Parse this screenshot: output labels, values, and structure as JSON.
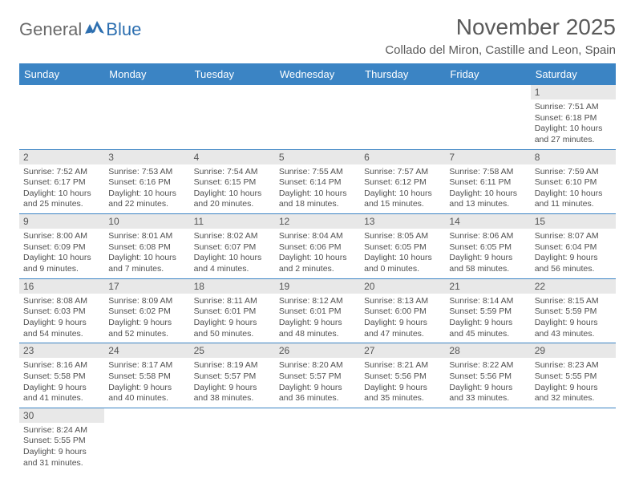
{
  "logo": {
    "part1": "General",
    "part2": "Blue"
  },
  "title": "November 2025",
  "location": "Collado del Miron, Castille and Leon, Spain",
  "colors": {
    "header_bg": "#3b84c4",
    "header_text": "#ffffff",
    "daynum_bg": "#e8e8e8",
    "row_border": "#3b84c4",
    "logo_gray": "#6a6a6a",
    "logo_blue": "#2d6fb0"
  },
  "dayNames": [
    "Sunday",
    "Monday",
    "Tuesday",
    "Wednesday",
    "Thursday",
    "Friday",
    "Saturday"
  ],
  "weeks": [
    [
      null,
      null,
      null,
      null,
      null,
      null,
      {
        "n": "1",
        "sr": "Sunrise: 7:51 AM",
        "ss": "Sunset: 6:18 PM",
        "d1": "Daylight: 10 hours",
        "d2": "and 27 minutes."
      }
    ],
    [
      {
        "n": "2",
        "sr": "Sunrise: 7:52 AM",
        "ss": "Sunset: 6:17 PM",
        "d1": "Daylight: 10 hours",
        "d2": "and 25 minutes."
      },
      {
        "n": "3",
        "sr": "Sunrise: 7:53 AM",
        "ss": "Sunset: 6:16 PM",
        "d1": "Daylight: 10 hours",
        "d2": "and 22 minutes."
      },
      {
        "n": "4",
        "sr": "Sunrise: 7:54 AM",
        "ss": "Sunset: 6:15 PM",
        "d1": "Daylight: 10 hours",
        "d2": "and 20 minutes."
      },
      {
        "n": "5",
        "sr": "Sunrise: 7:55 AM",
        "ss": "Sunset: 6:14 PM",
        "d1": "Daylight: 10 hours",
        "d2": "and 18 minutes."
      },
      {
        "n": "6",
        "sr": "Sunrise: 7:57 AM",
        "ss": "Sunset: 6:12 PM",
        "d1": "Daylight: 10 hours",
        "d2": "and 15 minutes."
      },
      {
        "n": "7",
        "sr": "Sunrise: 7:58 AM",
        "ss": "Sunset: 6:11 PM",
        "d1": "Daylight: 10 hours",
        "d2": "and 13 minutes."
      },
      {
        "n": "8",
        "sr": "Sunrise: 7:59 AM",
        "ss": "Sunset: 6:10 PM",
        "d1": "Daylight: 10 hours",
        "d2": "and 11 minutes."
      }
    ],
    [
      {
        "n": "9",
        "sr": "Sunrise: 8:00 AM",
        "ss": "Sunset: 6:09 PM",
        "d1": "Daylight: 10 hours",
        "d2": "and 9 minutes."
      },
      {
        "n": "10",
        "sr": "Sunrise: 8:01 AM",
        "ss": "Sunset: 6:08 PM",
        "d1": "Daylight: 10 hours",
        "d2": "and 7 minutes."
      },
      {
        "n": "11",
        "sr": "Sunrise: 8:02 AM",
        "ss": "Sunset: 6:07 PM",
        "d1": "Daylight: 10 hours",
        "d2": "and 4 minutes."
      },
      {
        "n": "12",
        "sr": "Sunrise: 8:04 AM",
        "ss": "Sunset: 6:06 PM",
        "d1": "Daylight: 10 hours",
        "d2": "and 2 minutes."
      },
      {
        "n": "13",
        "sr": "Sunrise: 8:05 AM",
        "ss": "Sunset: 6:05 PM",
        "d1": "Daylight: 10 hours",
        "d2": "and 0 minutes."
      },
      {
        "n": "14",
        "sr": "Sunrise: 8:06 AM",
        "ss": "Sunset: 6:05 PM",
        "d1": "Daylight: 9 hours",
        "d2": "and 58 minutes."
      },
      {
        "n": "15",
        "sr": "Sunrise: 8:07 AM",
        "ss": "Sunset: 6:04 PM",
        "d1": "Daylight: 9 hours",
        "d2": "and 56 minutes."
      }
    ],
    [
      {
        "n": "16",
        "sr": "Sunrise: 8:08 AM",
        "ss": "Sunset: 6:03 PM",
        "d1": "Daylight: 9 hours",
        "d2": "and 54 minutes."
      },
      {
        "n": "17",
        "sr": "Sunrise: 8:09 AM",
        "ss": "Sunset: 6:02 PM",
        "d1": "Daylight: 9 hours",
        "d2": "and 52 minutes."
      },
      {
        "n": "18",
        "sr": "Sunrise: 8:11 AM",
        "ss": "Sunset: 6:01 PM",
        "d1": "Daylight: 9 hours",
        "d2": "and 50 minutes."
      },
      {
        "n": "19",
        "sr": "Sunrise: 8:12 AM",
        "ss": "Sunset: 6:01 PM",
        "d1": "Daylight: 9 hours",
        "d2": "and 48 minutes."
      },
      {
        "n": "20",
        "sr": "Sunrise: 8:13 AM",
        "ss": "Sunset: 6:00 PM",
        "d1": "Daylight: 9 hours",
        "d2": "and 47 minutes."
      },
      {
        "n": "21",
        "sr": "Sunrise: 8:14 AM",
        "ss": "Sunset: 5:59 PM",
        "d1": "Daylight: 9 hours",
        "d2": "and 45 minutes."
      },
      {
        "n": "22",
        "sr": "Sunrise: 8:15 AM",
        "ss": "Sunset: 5:59 PM",
        "d1": "Daylight: 9 hours",
        "d2": "and 43 minutes."
      }
    ],
    [
      {
        "n": "23",
        "sr": "Sunrise: 8:16 AM",
        "ss": "Sunset: 5:58 PM",
        "d1": "Daylight: 9 hours",
        "d2": "and 41 minutes."
      },
      {
        "n": "24",
        "sr": "Sunrise: 8:17 AM",
        "ss": "Sunset: 5:58 PM",
        "d1": "Daylight: 9 hours",
        "d2": "and 40 minutes."
      },
      {
        "n": "25",
        "sr": "Sunrise: 8:19 AM",
        "ss": "Sunset: 5:57 PM",
        "d1": "Daylight: 9 hours",
        "d2": "and 38 minutes."
      },
      {
        "n": "26",
        "sr": "Sunrise: 8:20 AM",
        "ss": "Sunset: 5:57 PM",
        "d1": "Daylight: 9 hours",
        "d2": "and 36 minutes."
      },
      {
        "n": "27",
        "sr": "Sunrise: 8:21 AM",
        "ss": "Sunset: 5:56 PM",
        "d1": "Daylight: 9 hours",
        "d2": "and 35 minutes."
      },
      {
        "n": "28",
        "sr": "Sunrise: 8:22 AM",
        "ss": "Sunset: 5:56 PM",
        "d1": "Daylight: 9 hours",
        "d2": "and 33 minutes."
      },
      {
        "n": "29",
        "sr": "Sunrise: 8:23 AM",
        "ss": "Sunset: 5:55 PM",
        "d1": "Daylight: 9 hours",
        "d2": "and 32 minutes."
      }
    ],
    [
      {
        "n": "30",
        "sr": "Sunrise: 8:24 AM",
        "ss": "Sunset: 5:55 PM",
        "d1": "Daylight: 9 hours",
        "d2": "and 31 minutes."
      },
      null,
      null,
      null,
      null,
      null,
      null
    ]
  ]
}
